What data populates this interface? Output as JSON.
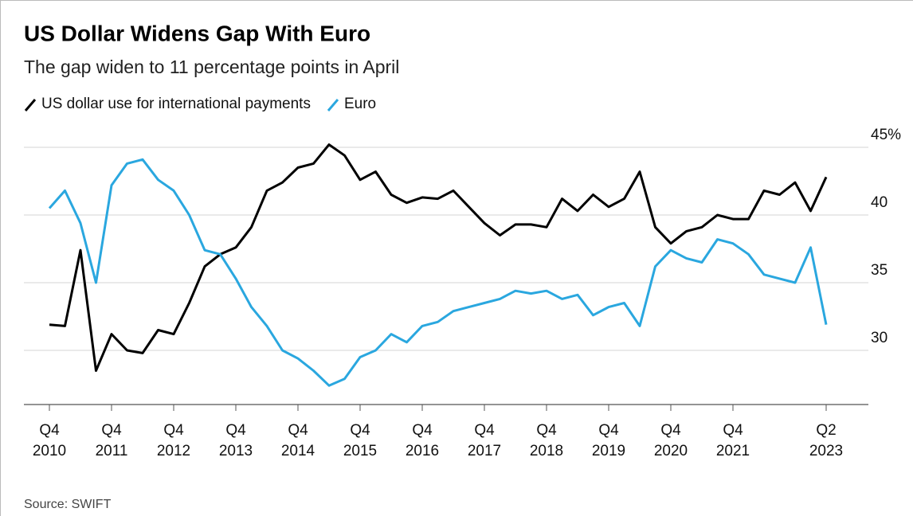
{
  "chart_data": {
    "type": "line",
    "title": "US Dollar Widens Gap With Euro",
    "subtitle": "The gap widen to 11 percentage points in April",
    "source": "Source: SWIFT",
    "categories": [
      "Q4 2010",
      null,
      null,
      null,
      "Q4 2011",
      null,
      null,
      null,
      "Q4 2012",
      null,
      null,
      null,
      "Q4 2013",
      null,
      null,
      null,
      "Q4 2014",
      null,
      null,
      null,
      "Q4 2015",
      null,
      null,
      null,
      "Q4 2016",
      null,
      null,
      null,
      "Q4 2017",
      null,
      null,
      null,
      "Q4 2018",
      null,
      null,
      null,
      "Q4 2019",
      null,
      null,
      null,
      "Q4 2020",
      null,
      null,
      null,
      "Q4 2021",
      null,
      null,
      null,
      null,
      null,
      "Q2 2023"
    ],
    "series": [
      {
        "name": "US dollar use for international payments",
        "color": "#000000",
        "values": [
          31.9,
          31.8,
          37.4,
          28.5,
          31.2,
          30.0,
          29.8,
          31.5,
          31.2,
          33.5,
          36.2,
          37.1,
          37.6,
          39.1,
          41.8,
          42.4,
          43.5,
          43.8,
          45.2,
          44.4,
          42.6,
          43.2,
          41.5,
          40.9,
          41.3,
          41.2,
          41.8,
          40.6,
          39.4,
          38.5,
          39.3,
          39.3,
          39.1,
          41.2,
          40.3,
          41.5,
          40.6,
          41.2,
          43.2,
          39.1,
          37.9,
          38.8,
          39.1,
          40.0,
          39.7,
          39.7,
          41.8,
          41.5,
          42.4,
          40.3,
          42.8
        ]
      },
      {
        "name": "Euro",
        "color": "#2aa7df",
        "values": [
          40.5,
          41.8,
          39.4,
          35.0,
          42.2,
          43.8,
          44.1,
          42.6,
          41.8,
          40.0,
          37.4,
          37.1,
          35.3,
          33.2,
          31.8,
          30.0,
          29.4,
          28.5,
          27.4,
          27.9,
          29.5,
          30.0,
          31.2,
          30.6,
          31.8,
          32.1,
          32.9,
          33.2,
          33.5,
          33.8,
          34.4,
          34.2,
          34.4,
          33.8,
          34.1,
          32.6,
          33.2,
          33.5,
          31.8,
          36.2,
          37.4,
          36.8,
          36.5,
          38.2,
          37.9,
          37.1,
          35.6,
          35.3,
          35.0,
          37.6,
          31.9
        ]
      }
    ],
    "ylim": [
      26,
      46
    ],
    "yticks": [
      30,
      35,
      40,
      {
        "value": 45,
        "label": "45%"
      }
    ],
    "grid": true
  }
}
